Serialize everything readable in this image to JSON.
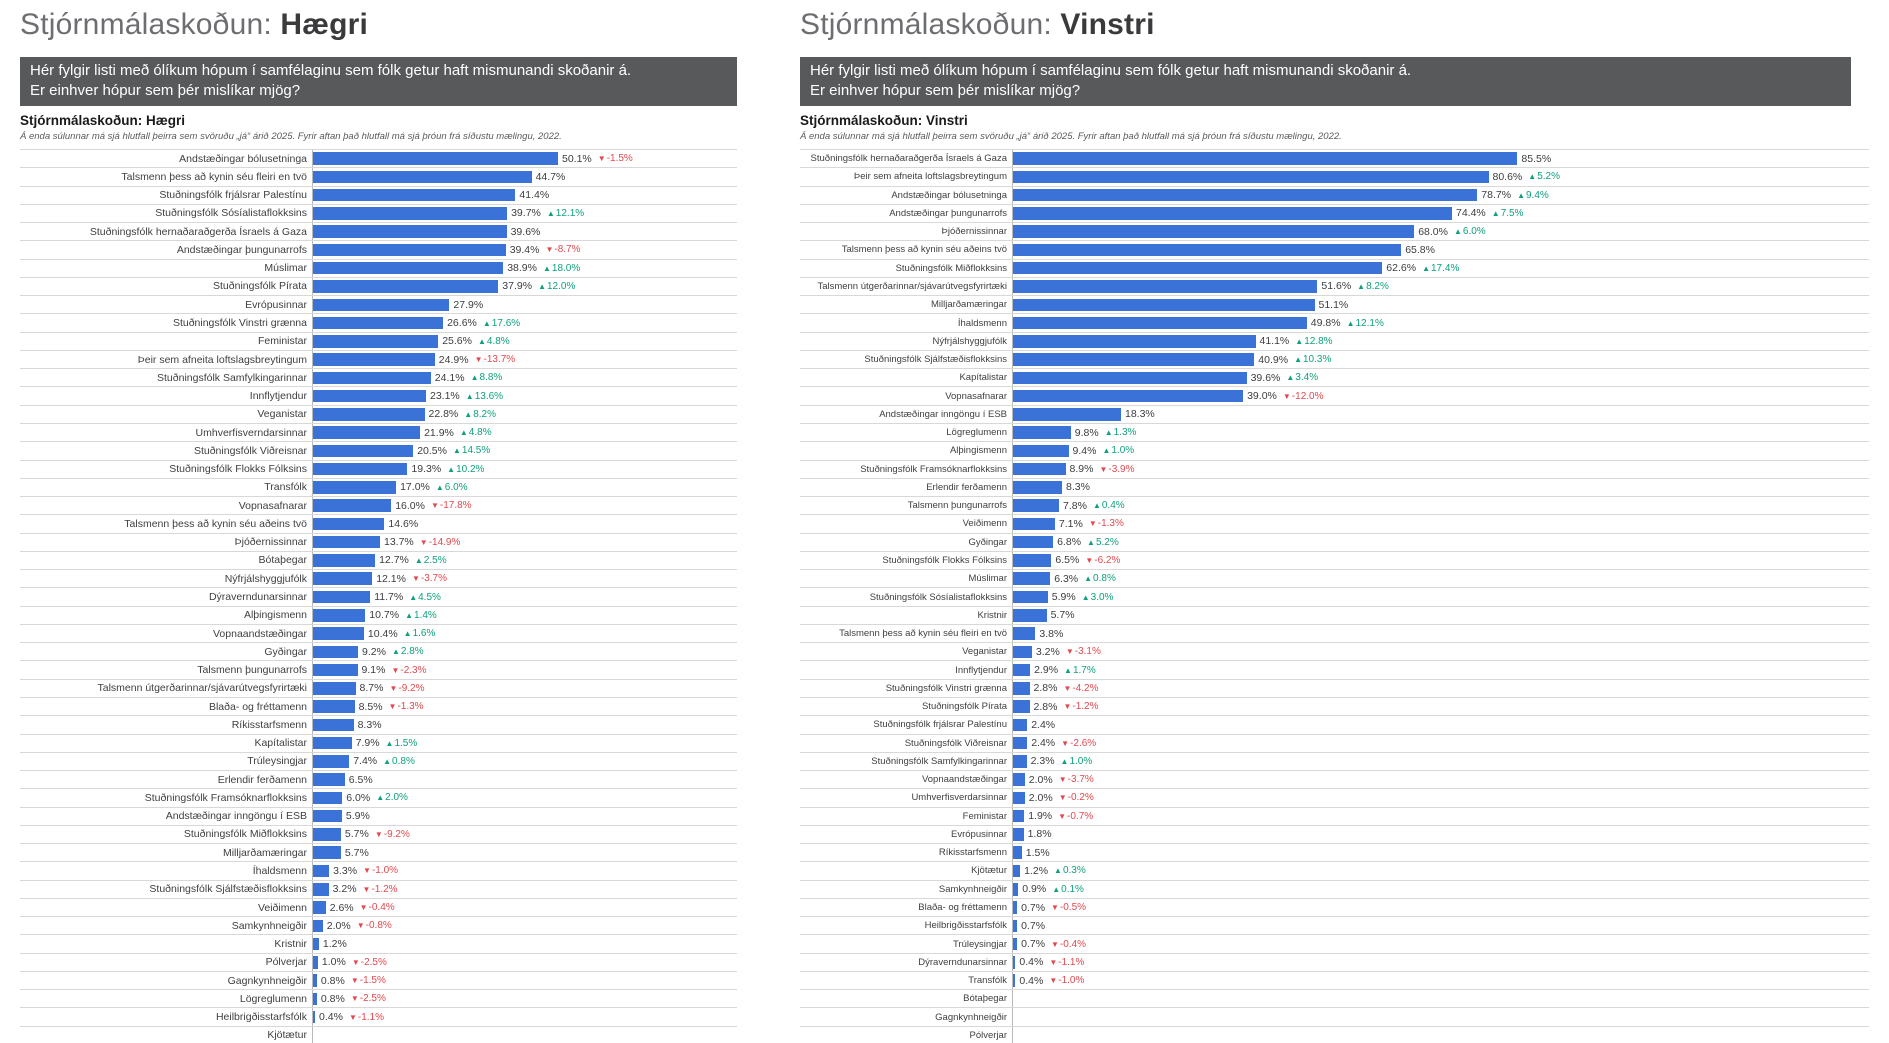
{
  "colors": {
    "bar": "#3b72d8",
    "up": "#0fa07e",
    "down": "#e2494f",
    "header_bg": "#58595b"
  },
  "icons": {
    "up_arrow": "▲",
    "down_arrow": "▼"
  },
  "charts": [
    {
      "title_prefix": "Stjórnmálaskoðun: ",
      "title_emphasis": "Hægri",
      "question_line1": "Hér fylgir listi með ólíkum hópum í samfélaginu sem fólk getur haft mismunandi skoðanir á.",
      "question_line2": "Er einhver hópur sem þér mislíkar mjög?",
      "section_title": "Stjórnmálaskoðun: Hægri",
      "footnote": "Á enda súlunnar má sjá hlutfall þeirra sem svöruðu „já“ árið 2025. Fyrir aftan það hlutfall má sjá þróun frá síðustu mælingu, 2022."
    },
    {
      "title_prefix": "Stjórnmálaskoðun: ",
      "title_emphasis": "Vinstri",
      "question_line1": "Hér fylgir listi með ólíkum hópum í samfélaginu sem fólk getur haft mismunandi skoðanir á.",
      "question_line2": "Er einhver hópur sem þér mislíkar mjög?",
      "section_title": "Stjórnmálaskoðun: Vinstri",
      "footnote": "Á enda súlunnar má sjá hlutfall þeirra sem svöruðu „já“ árið 2025. Fyrir aftan það hlutfall má sjá þróun frá síðustu mælingu, 2022."
    }
  ],
  "chart_data": [
    {
      "type": "bar",
      "orientation": "horizontal",
      "title": "Stjórnmálaskoðun: Hægri",
      "xlim": [
        0,
        100
      ],
      "unit": "%",
      "grid": "row-separators",
      "categories": [
        "Andstæðingar bólusetninga",
        "Talsmenn þess að kynin séu fleiri en tvö",
        "Stuðningsfólk frjálsrar Palestínu",
        "Stuðningsfólk Sósíalistaflokksins",
        "Stuðningsfólk hernaðaraðgerða Ísraels á Gaza",
        "Andstæðingar þungunarrofs",
        "Múslimar",
        "Stuðningsfólk Pírata",
        "Evrópusinnar",
        "Stuðningsfólk Vinstri grænna",
        "Feministar",
        "Þeir sem afneita loftslagsbreytingum",
        "Stuðningsfólk Samfylkingarinnar",
        "Innflytjendur",
        "Veganistar",
        "Umhverfisverndarsinnar",
        "Stuðningsfólk Viðreisnar",
        "Stuðningsfólk Flokks Fólksins",
        "Transfólk",
        "Vopnasafnarar",
        "Talsmenn þess að kynin séu aðeins tvö",
        "Þjóðernissinnar",
        "Bótaþegar",
        "Nýfrjálshyggjufólk",
        "Dýraverndunarsinnar",
        "Alþingismenn",
        "Vopnaandstæðingar",
        "Gyðingar",
        "Talsmenn þungunarrofs",
        "Talsmenn útgerðarinnar/sjávarútvegsfyrirtæki",
        "Blaða- og fréttamenn",
        "Ríkisstarfsmenn",
        "Kapítalistar",
        "Trúleysingjar",
        "Erlendir ferðamenn",
        "Stuðningsfólk Framsóknarflokksins",
        "Andstæðingar inngöngu í ESB",
        "Stuðningsfólk Miðflokksins",
        "Milljarðamæringar",
        "Íhaldsmenn",
        "Stuðningsfólk Sjálfstæðisflokksins",
        "Veiðimenn",
        "Samkynhneigðir",
        "Kristnir",
        "Pólverjar",
        "Gagnkynhneigðir",
        "Lögreglumenn",
        "Heilbrigðisstarfsfólk",
        "Kjötætur"
      ],
      "values": [
        50.1,
        44.7,
        41.4,
        39.7,
        39.6,
        39.4,
        38.9,
        37.9,
        27.9,
        26.6,
        25.6,
        24.9,
        24.1,
        23.1,
        22.8,
        21.9,
        20.5,
        19.3,
        17.0,
        16.0,
        14.6,
        13.7,
        12.7,
        12.1,
        11.7,
        10.7,
        10.4,
        9.2,
        9.1,
        8.7,
        8.5,
        8.3,
        7.9,
        7.4,
        6.5,
        6.0,
        5.9,
        5.7,
        5.7,
        3.3,
        3.2,
        2.6,
        2.0,
        1.2,
        1.0,
        0.8,
        0.8,
        0.4,
        null
      ],
      "deltas": [
        -1.5,
        null,
        null,
        12.1,
        null,
        -8.7,
        18.0,
        12.0,
        null,
        17.6,
        4.8,
        -13.7,
        8.8,
        13.6,
        8.2,
        4.8,
        14.5,
        10.2,
        6.0,
        -17.8,
        null,
        -14.9,
        2.5,
        -3.7,
        4.5,
        1.4,
        1.6,
        2.8,
        -2.3,
        -9.2,
        -1.3,
        null,
        1.5,
        0.8,
        null,
        2.0,
        null,
        -9.2,
        null,
        -1.0,
        -1.2,
        -0.4,
        -0.8,
        null,
        -2.5,
        -1.5,
        -2.5,
        -1.1,
        null
      ]
    },
    {
      "type": "bar",
      "orientation": "horizontal",
      "title": "Stjórnmálaskoðun: Vinstri",
      "xlim": [
        0,
        100
      ],
      "unit": "%",
      "grid": "row-separators",
      "categories": [
        "Stuðningsfólk hernaðaraðgerða Ísraels á Gaza",
        "Þeir sem afneita loftslagsbreytingum",
        "Andstæðingar bólusetninga",
        "Andstæðingar þungunarrofs",
        "Þjóðernissinnar",
        "Talsmenn þess að kynin séu aðeins tvö",
        "Stuðningsfólk Miðflokksins",
        "Talsmenn útgerðarinnar/sjávarútvegsfyrirtæki",
        "Milljarðamæringar",
        "Íhaldsmenn",
        "Nýfrjálshyggjufólk",
        "Stuðningsfólk Sjálfstæðisflokksins",
        "Kapítalistar",
        "Vopnasafnarar",
        "Andstæðingar inngöngu í ESB",
        "Lögreglumenn",
        "Alþingismenn",
        "Stuðningsfólk Framsóknarflokksins",
        "Erlendir ferðamenn",
        "Talsmenn þungunarrofs",
        "Veiðimenn",
        "Gyðingar",
        "Stuðningsfólk Flokks Fólksins",
        "Múslimar",
        "Stuðningsfólk Sósíalistaflokksins",
        "Kristnir",
        "Talsmenn þess að kynin séu fleiri en tvö",
        "Veganistar",
        "Innflytjendur",
        "Stuðningsfólk Vinstri grænna",
        "Stuðningsfólk Pírata",
        "Stuðningsfólk frjálsrar Palestínu",
        "Stuðningsfólk Viðreisnar",
        "Stuðningsfólk Samfylkingarinnar",
        "Vopnaandstæðingar",
        "Umhverfisverdarsinnar",
        "Feministar",
        "Evrópusinnar",
        "Ríkisstarfsmenn",
        "Kjötætur",
        "Samkynhneigðir",
        "Blaða- og fréttamenn",
        "Heilbrigðisstarfsfólk",
        "Trúleysingjar",
        "Dýraverndunarsinnar",
        "Transfólk",
        "Bótaþegar",
        "Gagnkynhneigðir",
        "Pólverjar"
      ],
      "values": [
        85.5,
        80.6,
        78.7,
        74.4,
        68.0,
        65.8,
        62.6,
        51.6,
        51.1,
        49.8,
        41.1,
        40.9,
        39.6,
        39.0,
        18.3,
        9.8,
        9.4,
        8.9,
        8.3,
        7.8,
        7.1,
        6.8,
        6.5,
        6.3,
        5.9,
        5.7,
        3.8,
        3.2,
        2.9,
        2.8,
        2.8,
        2.4,
        2.4,
        2.3,
        2.0,
        2.0,
        1.9,
        1.8,
        1.5,
        1.2,
        0.9,
        0.7,
        0.7,
        0.7,
        0.4,
        0.4,
        null,
        null,
        null
      ],
      "deltas": [
        null,
        5.2,
        9.4,
        7.5,
        6.0,
        null,
        17.4,
        8.2,
        null,
        12.1,
        12.8,
        10.3,
        3.4,
        -12.0,
        null,
        1.3,
        1.0,
        -3.9,
        null,
        0.4,
        -1.3,
        5.2,
        -6.2,
        0.8,
        3.0,
        null,
        null,
        -3.1,
        1.7,
        -4.2,
        -1.2,
        null,
        -2.6,
        1.0,
        -3.7,
        -0.2,
        -0.7,
        null,
        null,
        0.3,
        0.1,
        -0.5,
        null,
        -0.4,
        -1.1,
        -1.0,
        null,
        null,
        null
      ]
    }
  ]
}
